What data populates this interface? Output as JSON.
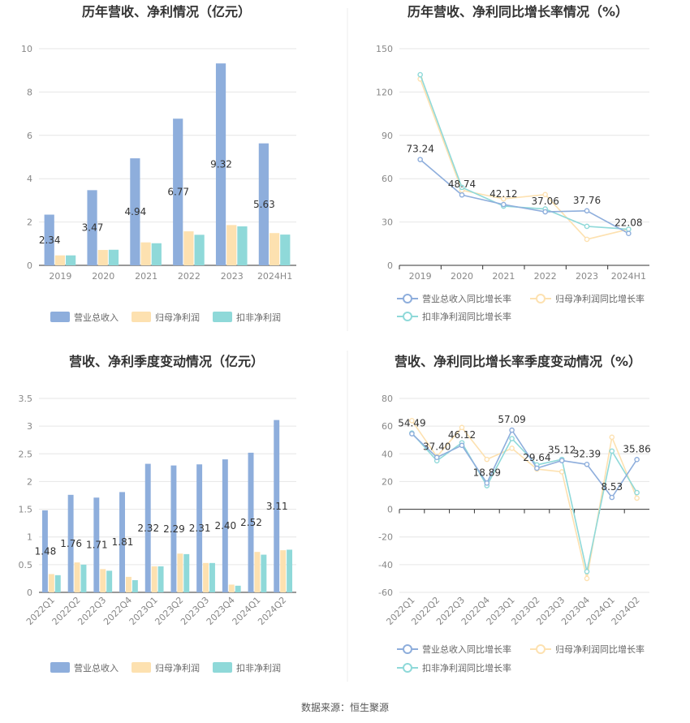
{
  "source": "数据来源：恒生聚源",
  "colors": {
    "revenue": "#8eaedc",
    "net_profit": "#fde1b0",
    "deducted_profit": "#8fd9d9"
  },
  "chart_data": [
    {
      "type": "bar",
      "title": "历年营收、净利情况（亿元）",
      "categories": [
        "2019",
        "2020",
        "2021",
        "2022",
        "2023",
        "2024H1"
      ],
      "ylim": [
        0,
        10
      ],
      "yticks": [
        "0",
        "2",
        "4",
        "6",
        "8",
        "10"
      ],
      "series": [
        {
          "name": "营业总收入",
          "values": [
            2.34,
            3.47,
            4.94,
            6.77,
            9.32,
            5.63
          ],
          "labels": [
            "2.34",
            "3.47",
            "4.94",
            "6.77",
            "9.32",
            "5.63"
          ]
        },
        {
          "name": "归母净利润",
          "values": [
            0.46,
            0.71,
            1.06,
            1.57,
            1.86,
            1.49
          ]
        },
        {
          "name": "扣非净利润",
          "values": [
            0.46,
            0.72,
            1.02,
            1.41,
            1.8,
            1.42
          ]
        }
      ]
    },
    {
      "type": "line",
      "title": "历年营收、净利同比增长率情况（%）",
      "categories": [
        "2019",
        "2020",
        "2021",
        "2022",
        "2023",
        "2024H1"
      ],
      "ylim": [
        0,
        150
      ],
      "yticks": [
        "0",
        "30",
        "60",
        "90",
        "120",
        "150"
      ],
      "series": [
        {
          "name": "营业总收入同比增长率",
          "values": [
            73.24,
            48.74,
            42.12,
            37.06,
            37.76,
            22.08
          ],
          "labels": [
            "73.24",
            "48.74",
            "42.12",
            "37.06",
            "37.76",
            "22.08"
          ]
        },
        {
          "name": "归母净利润同比增长率",
          "values": [
            129,
            52,
            46,
            49,
            18,
            25
          ]
        },
        {
          "name": "扣非净利润同比增长率",
          "values": [
            132,
            54,
            41,
            39,
            27,
            25
          ]
        }
      ]
    },
    {
      "type": "bar",
      "title": "营收、净利季度变动情况（亿元）",
      "categories": [
        "2022Q1",
        "2022Q2",
        "2022Q3",
        "2022Q4",
        "2023Q1",
        "2023Q2",
        "2023Q3",
        "2023Q4",
        "2024Q1",
        "2024Q2"
      ],
      "ylim": [
        0,
        3.5
      ],
      "yticks": [
        "0",
        "0.5",
        "1",
        "1.5",
        "2",
        "2.5",
        "3",
        "3.5"
      ],
      "series": [
        {
          "name": "营业总收入",
          "values": [
            1.48,
            1.76,
            1.71,
            1.81,
            2.32,
            2.29,
            2.31,
            2.4,
            2.52,
            3.11
          ],
          "labels": [
            "1.48",
            "1.76",
            "1.71",
            "1.81",
            "2.32",
            "2.29",
            "2.31",
            "2.40",
            "2.52",
            "3.11"
          ]
        },
        {
          "name": "归母净利润",
          "values": [
            0.33,
            0.54,
            0.42,
            0.28,
            0.47,
            0.7,
            0.53,
            0.14,
            0.73,
            0.76
          ]
        },
        {
          "name": "扣非净利润",
          "values": [
            0.31,
            0.5,
            0.39,
            0.22,
            0.47,
            0.69,
            0.53,
            0.12,
            0.68,
            0.77
          ]
        }
      ]
    },
    {
      "type": "line",
      "title": "营收、净利同比增长率季度变动情况（%）",
      "categories": [
        "2022Q1",
        "2022Q2",
        "2022Q3",
        "2022Q4",
        "2023Q1",
        "2023Q2",
        "2023Q3",
        "2023Q4",
        "2024Q1",
        "2024Q2"
      ],
      "ylim": [
        -60,
        80
      ],
      "yticks": [
        "-60",
        "-40",
        "-20",
        "0",
        "20",
        "40",
        "60",
        "80"
      ],
      "series": [
        {
          "name": "营业总收入同比增长率",
          "values": [
            54.49,
            37.4,
            46.12,
            18.89,
            57.09,
            29.64,
            35.12,
            32.39,
            8.53,
            35.86
          ],
          "labels": [
            "54.49",
            "37.40",
            "46.12",
            "18.89",
            "57.09",
            "29.64",
            "35.12",
            "32.39",
            "8.53",
            "35.86"
          ]
        },
        {
          "name": "归母净利润同比增长率",
          "values": [
            64,
            38,
            59,
            36,
            44,
            29,
            27,
            -50,
            52,
            8
          ]
        },
        {
          "name": "扣非净利润同比增长率",
          "values": [
            55,
            35,
            48,
            17,
            51,
            32,
            36,
            -45,
            42,
            12
          ]
        }
      ]
    }
  ]
}
